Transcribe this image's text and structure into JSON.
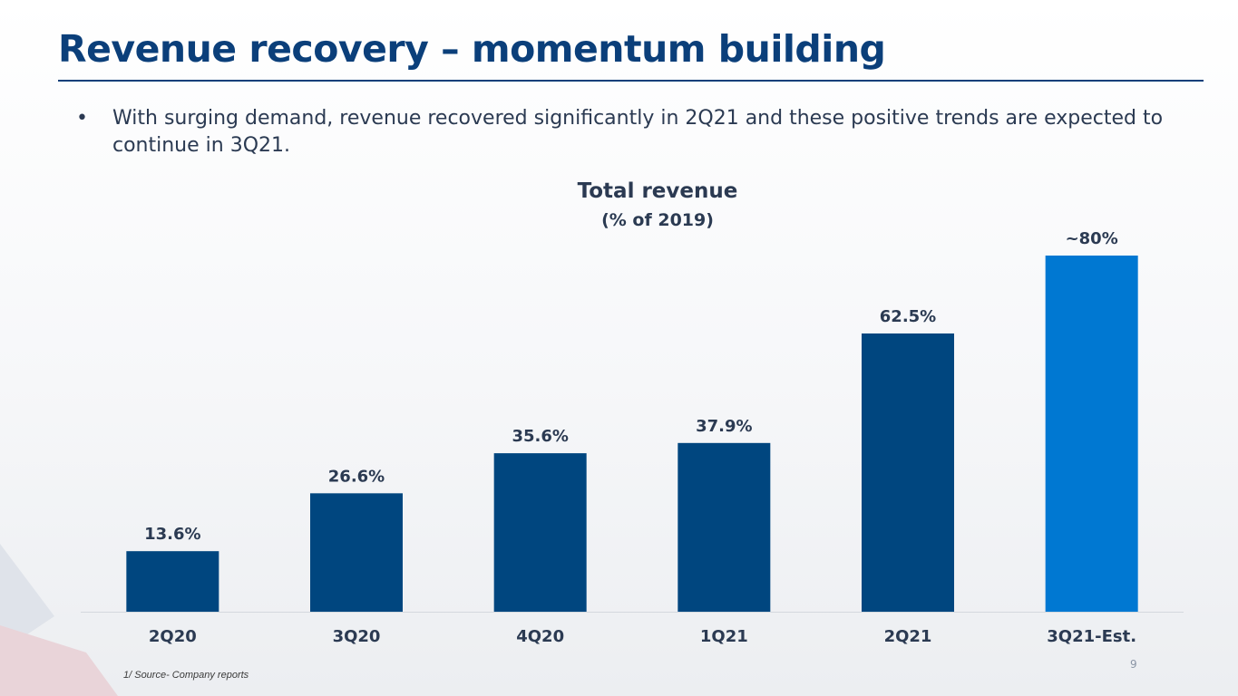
{
  "slide": {
    "title": "Revenue recovery – momentum building",
    "bullet_symbol": "•",
    "bullet_text": "With surging demand, revenue recovered significantly in 2Q21 and these positive trends are expected to continue in 3Q21.",
    "footnote": "1/ Source- Company reports",
    "page_number": "9"
  },
  "colors": {
    "title": "#0b3f7a",
    "bar_actual": "#00467f",
    "bar_estimate": "#0078d2",
    "label": "#2b3a52"
  },
  "chart_data": {
    "type": "bar",
    "title": "Total revenue",
    "subtitle": "(% of 2019)",
    "categories": [
      "2Q20",
      "3Q20",
      "4Q20",
      "1Q21",
      "2Q21",
      "3Q21-Est."
    ],
    "values": [
      13.6,
      26.6,
      35.6,
      37.9,
      62.5,
      80
    ],
    "data_labels": [
      "13.6%",
      "26.6%",
      "35.6%",
      "37.9%",
      "62.5%",
      "~80%"
    ],
    "estimate_flags": [
      false,
      false,
      false,
      false,
      false,
      true
    ],
    "ylim": [
      0,
      80
    ],
    "xlabel": "",
    "ylabel": "",
    "grid": false
  }
}
